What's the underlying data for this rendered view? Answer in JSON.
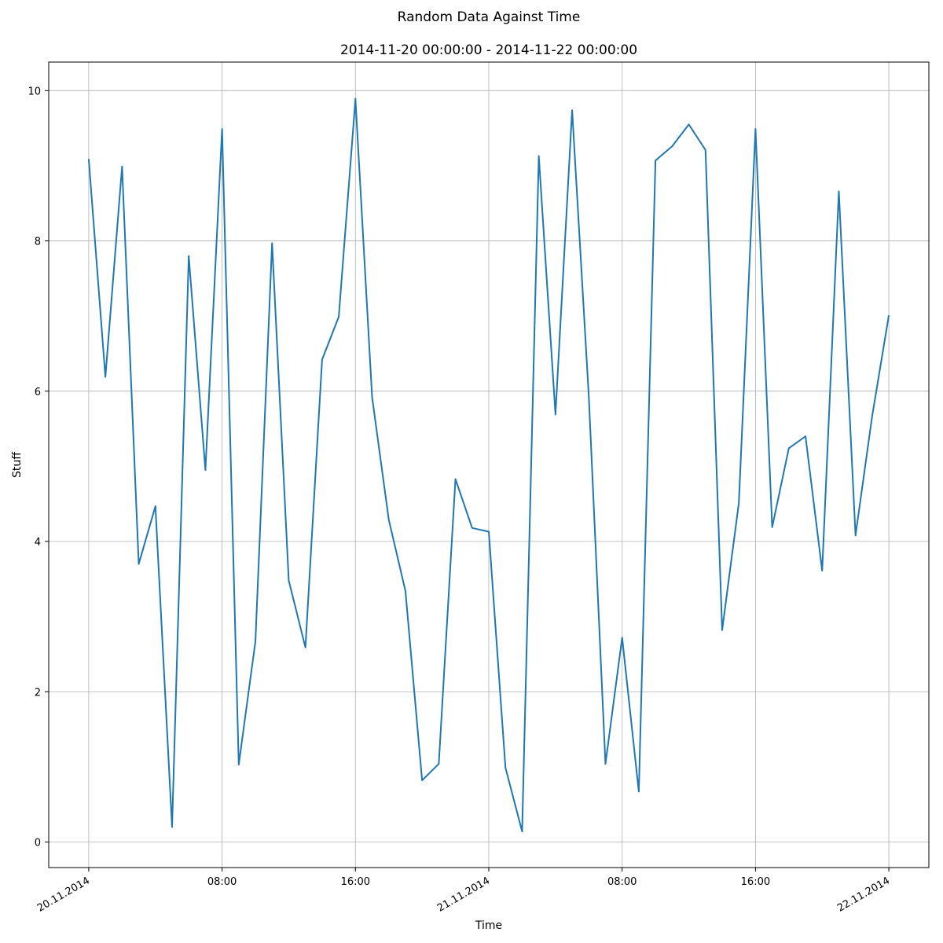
{
  "chart_data": {
    "type": "line",
    "title": "Random Data Against Time",
    "subtitle": "2014-11-20 00:00:00 - 2014-11-22 00:00:00",
    "xlabel": "Time",
    "ylabel": "Stuff",
    "x_range": [
      "2014-11-20 00:00",
      "2014-11-22 00:00"
    ],
    "xlim": [
      "2014-11-19 21:36",
      "2014-11-22 02:24"
    ],
    "ylim": [
      -0.34,
      10.38
    ],
    "grid": true,
    "line_color": "#1f77b4",
    "x_ticks": [
      {
        "value": "2014-11-20 00:00",
        "label": "20.11.2014",
        "rotated": true
      },
      {
        "value": "2014-11-20 08:00",
        "label": "08:00",
        "rotated": false
      },
      {
        "value": "2014-11-20 16:00",
        "label": "16:00",
        "rotated": false
      },
      {
        "value": "2014-11-21 00:00",
        "label": "21.11.2014",
        "rotated": true
      },
      {
        "value": "2014-11-21 08:00",
        "label": "08:00",
        "rotated": false
      },
      {
        "value": "2014-11-21 16:00",
        "label": "16:00",
        "rotated": false
      },
      {
        "value": "2014-11-22 00:00",
        "label": "22.11.2014",
        "rotated": true
      }
    ],
    "y_ticks": [
      {
        "value": 0,
        "label": "0"
      },
      {
        "value": 2,
        "label": "2"
      },
      {
        "value": 4,
        "label": "4"
      },
      {
        "value": 6,
        "label": "6"
      },
      {
        "value": 8,
        "label": "8"
      },
      {
        "value": 10,
        "label": "10"
      }
    ],
    "series": [
      {
        "x": [
          "2014-11-20 00:00",
          "2014-11-20 01:00",
          "2014-11-20 02:00",
          "2014-11-20 03:00",
          "2014-11-20 04:00",
          "2014-11-20 05:00",
          "2014-11-20 06:00",
          "2014-11-20 07:00",
          "2014-11-20 08:00",
          "2014-11-20 09:00",
          "2014-11-20 10:00",
          "2014-11-20 11:00",
          "2014-11-20 12:00",
          "2014-11-20 13:00",
          "2014-11-20 14:00",
          "2014-11-20 15:00",
          "2014-11-20 16:00",
          "2014-11-20 17:00",
          "2014-11-20 18:00",
          "2014-11-20 19:00",
          "2014-11-20 20:00",
          "2014-11-20 21:00",
          "2014-11-20 22:00",
          "2014-11-20 23:00",
          "2014-11-21 00:00",
          "2014-11-21 01:00",
          "2014-11-21 02:00",
          "2014-11-21 03:00",
          "2014-11-21 04:00",
          "2014-11-21 05:00",
          "2014-11-21 06:00",
          "2014-11-21 07:00",
          "2014-11-21 08:00",
          "2014-11-21 09:00",
          "2014-11-21 10:00",
          "2014-11-21 11:00",
          "2014-11-21 12:00",
          "2014-11-21 13:00",
          "2014-11-21 14:00",
          "2014-11-21 15:00",
          "2014-11-21 16:00",
          "2014-11-21 17:00",
          "2014-11-21 18:00",
          "2014-11-21 19:00",
          "2014-11-21 20:00",
          "2014-11-21 21:00",
          "2014-11-21 22:00",
          "2014-11-21 23:00",
          "2014-11-22 00:00"
        ],
        "y": [
          9.09,
          6.19,
          8.99,
          3.7,
          4.47,
          0.2,
          7.8,
          4.95,
          9.49,
          1.03,
          2.67,
          7.97,
          3.48,
          2.59,
          6.42,
          6.99,
          9.89,
          5.92,
          4.29,
          3.34,
          0.82,
          1.04,
          4.83,
          4.18,
          4.13,
          0.99,
          0.14,
          9.13,
          5.69,
          9.74,
          5.93,
          1.04,
          2.72,
          0.67,
          9.07,
          9.26,
          9.55,
          9.21,
          2.82,
          4.51,
          9.49,
          4.19,
          5.24,
          5.4,
          3.61,
          8.66,
          4.08,
          5.67,
          7.01
        ]
      }
    ]
  }
}
